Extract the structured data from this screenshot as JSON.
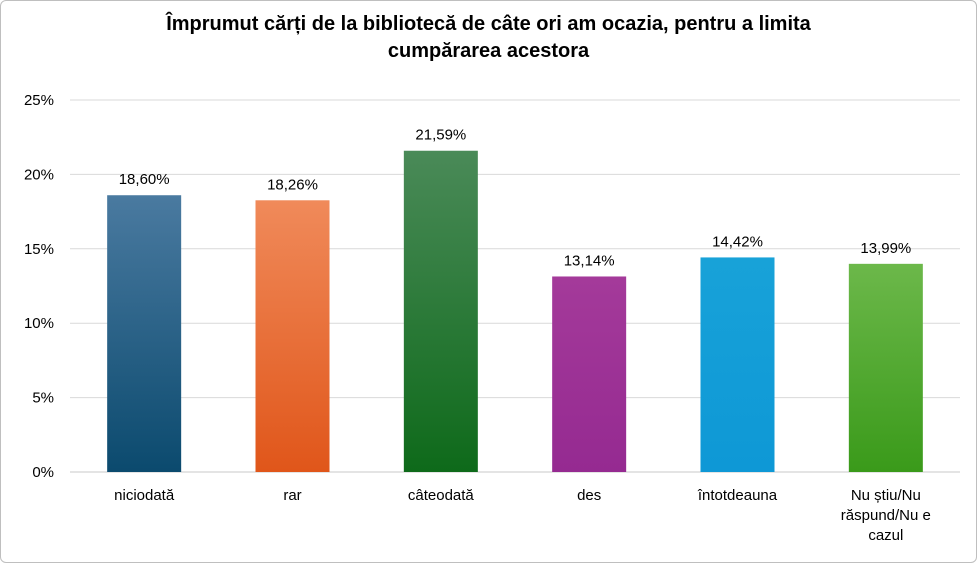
{
  "chart_data": {
    "type": "bar",
    "title": "Împrumut cărți de la bibliotecă de câte ori am ocazia, pentru a limita cumpărarea acestora",
    "categories": [
      "niciodată",
      "rar",
      "câteodată",
      "des",
      "întotdeauna",
      "Nu știu/Nu răspund/Nu e cazul"
    ],
    "category_lines": [
      [
        "niciodată"
      ],
      [
        "rar"
      ],
      [
        "câteodată"
      ],
      [
        "des"
      ],
      [
        "întotdeauna"
      ],
      [
        "Nu știu/Nu",
        "răspund/Nu e",
        "cazul"
      ]
    ],
    "values": [
      18.6,
      18.26,
      21.59,
      13.14,
      14.42,
      13.99
    ],
    "data_labels": [
      "18,60%",
      "18,26%",
      "21,59%",
      "13,14%",
      "14,42%",
      "13,99%"
    ],
    "yticks": [
      "0%",
      "5%",
      "10%",
      "15%",
      "20%",
      "25%"
    ],
    "ylim": [
      0,
      25
    ],
    "xlabel": "",
    "ylabel": "",
    "grid": true,
    "legend": "none",
    "colors": [
      [
        "#4a7aa0",
        "#0b4a6e"
      ],
      [
        "#f08a5a",
        "#e0561a"
      ],
      [
        "#4a8a58",
        "#0e6a1a"
      ],
      [
        "#a43a9a",
        "#952a91"
      ],
      [
        "#18a2d8",
        "#0e98d6"
      ],
      [
        "#6cb84a",
        "#3a9a1a"
      ]
    ]
  }
}
